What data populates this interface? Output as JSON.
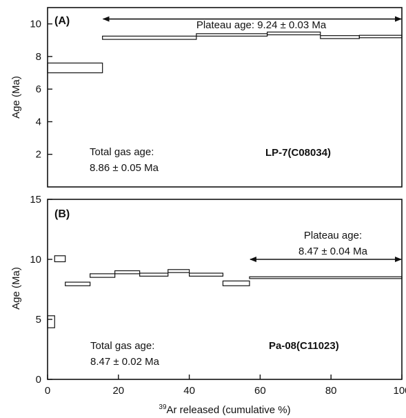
{
  "chart_data": [
    {
      "type": "line",
      "panel_label": "(A)",
      "ylabel": "Age (Ma)",
      "xlabel": "",
      "xlim": [
        0,
        100
      ],
      "ylim": [
        0,
        11
      ],
      "yticks": [
        2,
        4,
        6,
        8,
        10
      ],
      "xticks": [],
      "steps": [
        {
          "x0": 0,
          "x1": 15.5,
          "lo": 7.0,
          "hi": 7.6
        },
        {
          "x0": 15.5,
          "x1": 42,
          "lo": 9.05,
          "hi": 9.25
        },
        {
          "x0": 42,
          "x1": 62,
          "lo": 9.25,
          "hi": 9.4
        },
        {
          "x0": 62,
          "x1": 77,
          "lo": 9.33,
          "hi": 9.5
        },
        {
          "x0": 77,
          "x1": 88,
          "lo": 9.1,
          "hi": 9.28
        },
        {
          "x0": 88,
          "x1": 100,
          "lo": 9.15,
          "hi": 9.3
        }
      ],
      "plateau": {
        "label": "Plateau age: 9.24 ± 0.03 Ma",
        "x_start": 15.5,
        "x_end": 100,
        "y": 10.3
      },
      "total_gas": {
        "line1": "Total gas age:",
        "line2": "8.86 ± 0.05 Ma"
      },
      "sample": "LP-7(C08034)"
    },
    {
      "type": "line",
      "panel_label": "(B)",
      "ylabel": "Age (Ma)",
      "xlabel": "Ar released (cumulative %)",
      "xlabel_superscript": "39",
      "xlim": [
        0,
        100
      ],
      "ylim": [
        0,
        15
      ],
      "yticks": [
        0,
        5,
        10,
        15
      ],
      "xticks": [
        0,
        20,
        40,
        60,
        80,
        100
      ],
      "steps": [
        {
          "x0": 0,
          "x1": 2,
          "lo": 4.3,
          "hi": 5.3
        },
        {
          "x0": 2,
          "x1": 5,
          "lo": 9.8,
          "hi": 10.3
        },
        {
          "x0": 5,
          "x1": 12,
          "lo": 7.8,
          "hi": 8.1
        },
        {
          "x0": 12,
          "x1": 19,
          "lo": 8.5,
          "hi": 8.8
        },
        {
          "x0": 19,
          "x1": 26,
          "lo": 8.8,
          "hi": 9.05
        },
        {
          "x0": 26,
          "x1": 34,
          "lo": 8.6,
          "hi": 8.85
        },
        {
          "x0": 34,
          "x1": 40,
          "lo": 8.9,
          "hi": 9.15
        },
        {
          "x0": 40,
          "x1": 49.5,
          "lo": 8.6,
          "hi": 8.85
        },
        {
          "x0": 49.5,
          "x1": 57,
          "lo": 7.8,
          "hi": 8.2
        },
        {
          "x0": 57,
          "x1": 100,
          "lo": 8.4,
          "hi": 8.55
        }
      ],
      "plateau": {
        "line1": "Plateau age:",
        "line2": "8.47 ± 0.04 Ma",
        "x_start": 57,
        "x_end": 100,
        "y": 10.0
      },
      "total_gas": {
        "line1": "Total gas age:",
        "line2": "8.47 ± 0.02 Ma"
      },
      "sample": "Pa-08(C11023)"
    }
  ]
}
